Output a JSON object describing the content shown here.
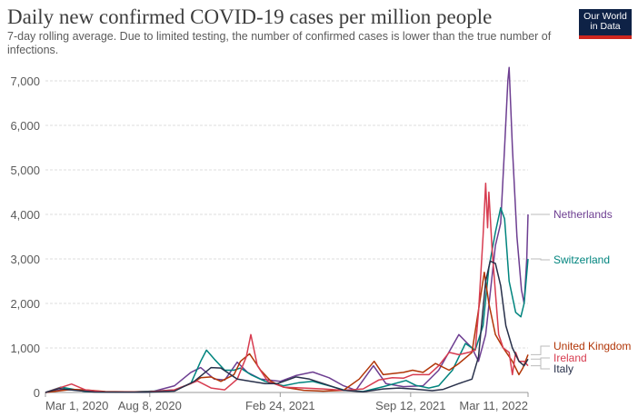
{
  "header": {
    "title": "Daily new confirmed COVID-19 cases per million people",
    "subtitle": "7-day rolling average. Due to limited testing, the number of confirmed cases is lower than the true number of infections.",
    "logo": "Our World in Data"
  },
  "chart_data": {
    "type": "line",
    "title": "Daily new confirmed COVID-19 cases per million people",
    "subtitle": "7-day rolling average. Due to limited testing, the number of confirmed cases is lower than the true number of infections.",
    "xlim": [
      "2020-03-01",
      "2022-03-11"
    ],
    "ylim": [
      0,
      7000
    ],
    "yticks": [
      0,
      1000,
      2000,
      3000,
      4000,
      5000,
      6000,
      7000
    ],
    "ytick_labels": [
      "0",
      "1,000",
      "2,000",
      "3,000",
      "4,000",
      "5,000",
      "6,000",
      "7,000"
    ],
    "xticks": [
      {
        "date": "2020-03-01",
        "label": "Mar 1, 2020"
      },
      {
        "date": "2020-08-08",
        "label": "Aug 8, 2020"
      },
      {
        "date": "2021-02-24",
        "label": "Feb 24, 2021"
      },
      {
        "date": "2021-09-12",
        "label": "Sep 12, 2021"
      },
      {
        "date": "2022-03-11",
        "label": "Mar 11, 2022"
      }
    ],
    "grid": "horizontal-dashed",
    "legend": "right, line-end labels",
    "series": [
      {
        "name": "Netherlands",
        "color": "#6d3e91",
        "points": [
          [
            "2020-03-01",
            0
          ],
          [
            "2020-03-25",
            60
          ],
          [
            "2020-04-15",
            60
          ],
          [
            "2020-05-15",
            20
          ],
          [
            "2020-07-01",
            5
          ],
          [
            "2020-08-15",
            30
          ],
          [
            "2020-09-15",
            150
          ],
          [
            "2020-10-10",
            450
          ],
          [
            "2020-10-25",
            560
          ],
          [
            "2020-11-15",
            300
          ],
          [
            "2020-12-01",
            280
          ],
          [
            "2020-12-20",
            680
          ],
          [
            "2021-01-05",
            450
          ],
          [
            "2021-01-25",
            300
          ],
          [
            "2021-02-24",
            250
          ],
          [
            "2021-03-20",
            380
          ],
          [
            "2021-04-15",
            460
          ],
          [
            "2021-05-10",
            330
          ],
          [
            "2021-06-01",
            150
          ],
          [
            "2021-06-20",
            50
          ],
          [
            "2021-07-17",
            600
          ],
          [
            "2021-08-05",
            200
          ],
          [
            "2021-09-01",
            130
          ],
          [
            "2021-10-01",
            150
          ],
          [
            "2021-10-25",
            500
          ],
          [
            "2021-11-25",
            1300
          ],
          [
            "2021-12-15",
            1000
          ],
          [
            "2021-12-25",
            700
          ],
          [
            "2022-01-05",
            1300
          ],
          [
            "2022-01-20",
            3300
          ],
          [
            "2022-01-28",
            3800
          ],
          [
            "2022-02-03",
            5500
          ],
          [
            "2022-02-08",
            7000
          ],
          [
            "2022-02-10",
            7300
          ],
          [
            "2022-02-15",
            5500
          ],
          [
            "2022-02-22",
            3500
          ],
          [
            "2022-03-01",
            2300
          ],
          [
            "2022-03-05",
            2000
          ],
          [
            "2022-03-09",
            3000
          ],
          [
            "2022-03-11",
            4000
          ]
        ]
      },
      {
        "name": "Switzerland",
        "color": "#00847e",
        "points": [
          [
            "2020-03-01",
            0
          ],
          [
            "2020-03-25",
            120
          ],
          [
            "2020-04-10",
            80
          ],
          [
            "2020-05-01",
            20
          ],
          [
            "2020-06-15",
            5
          ],
          [
            "2020-07-15",
            15
          ],
          [
            "2020-08-15",
            30
          ],
          [
            "2020-09-15",
            60
          ],
          [
            "2020-10-10",
            200
          ],
          [
            "2020-10-25",
            700
          ],
          [
            "2020-11-03",
            950
          ],
          [
            "2020-11-15",
            750
          ],
          [
            "2020-12-01",
            500
          ],
          [
            "2020-12-15",
            500
          ],
          [
            "2020-12-25",
            550
          ],
          [
            "2021-01-10",
            400
          ],
          [
            "2021-02-01",
            250
          ],
          [
            "2021-03-01",
            150
          ],
          [
            "2021-03-25",
            220
          ],
          [
            "2021-04-15",
            250
          ],
          [
            "2021-05-10",
            150
          ],
          [
            "2021-06-01",
            60
          ],
          [
            "2021-07-01",
            20
          ],
          [
            "2021-08-01",
            130
          ],
          [
            "2021-09-05",
            270
          ],
          [
            "2021-09-20",
            160
          ],
          [
            "2021-10-10",
            100
          ],
          [
            "2021-10-25",
            150
          ],
          [
            "2021-11-15",
            500
          ],
          [
            "2021-12-05",
            1100
          ],
          [
            "2021-12-20",
            950
          ],
          [
            "2022-01-01",
            1500
          ],
          [
            "2022-01-10",
            2800
          ],
          [
            "2022-01-20",
            3600
          ],
          [
            "2022-01-28",
            4150
          ],
          [
            "2022-02-03",
            3900
          ],
          [
            "2022-02-10",
            2500
          ],
          [
            "2022-02-20",
            1800
          ],
          [
            "2022-02-28",
            1700
          ],
          [
            "2022-03-05",
            2000
          ],
          [
            "2022-03-11",
            3000
          ]
        ]
      },
      {
        "name": "United Kingdom",
        "color": "#b13507",
        "points": [
          [
            "2020-03-01",
            0
          ],
          [
            "2020-04-10",
            70
          ],
          [
            "2020-05-01",
            60
          ],
          [
            "2020-06-01",
            20
          ],
          [
            "2020-08-01",
            10
          ],
          [
            "2020-09-15",
            50
          ],
          [
            "2020-10-10",
            200
          ],
          [
            "2020-10-25",
            330
          ],
          [
            "2020-11-10",
            350
          ],
          [
            "2020-11-25",
            250
          ],
          [
            "2020-12-15",
            400
          ],
          [
            "2020-12-25",
            700
          ],
          [
            "2021-01-08",
            870
          ],
          [
            "2021-01-25",
            500
          ],
          [
            "2021-02-10",
            250
          ],
          [
            "2021-03-01",
            120
          ],
          [
            "2021-04-01",
            50
          ],
          [
            "2021-05-01",
            30
          ],
          [
            "2021-06-01",
            50
          ],
          [
            "2021-06-25",
            300
          ],
          [
            "2021-07-18",
            700
          ],
          [
            "2021-08-01",
            400
          ],
          [
            "2021-09-01",
            450
          ],
          [
            "2021-09-15",
            500
          ],
          [
            "2021-10-01",
            450
          ],
          [
            "2021-10-20",
            650
          ],
          [
            "2021-11-10",
            500
          ],
          [
            "2021-11-25",
            650
          ],
          [
            "2021-12-15",
            900
          ],
          [
            "2022-01-03",
            2700
          ],
          [
            "2022-01-10",
            2000
          ],
          [
            "2022-01-20",
            1300
          ],
          [
            "2022-02-01",
            1000
          ],
          [
            "2022-02-15",
            700
          ],
          [
            "2022-02-25",
            400
          ],
          [
            "2022-03-03",
            550
          ],
          [
            "2022-03-11",
            850
          ]
        ]
      },
      {
        "name": "Ireland",
        "color": "#d73c50",
        "points": [
          [
            "2020-03-01",
            0
          ],
          [
            "2020-04-10",
            190
          ],
          [
            "2020-05-01",
            60
          ],
          [
            "2020-06-01",
            10
          ],
          [
            "2020-08-01",
            10
          ],
          [
            "2020-09-15",
            60
          ],
          [
            "2020-10-20",
            260
          ],
          [
            "2020-11-10",
            100
          ],
          [
            "2020-12-01",
            60
          ],
          [
            "2020-12-20",
            300
          ],
          [
            "2021-01-03",
            800
          ],
          [
            "2021-01-10",
            1300
          ],
          [
            "2021-01-20",
            600
          ],
          [
            "2021-02-05",
            250
          ],
          [
            "2021-03-01",
            120
          ],
          [
            "2021-04-01",
            100
          ],
          [
            "2021-05-01",
            80
          ],
          [
            "2021-06-01",
            50
          ],
          [
            "2021-07-01",
            80
          ],
          [
            "2021-07-25",
            280
          ],
          [
            "2021-08-15",
            330
          ],
          [
            "2021-09-01",
            320
          ],
          [
            "2021-09-15",
            400
          ],
          [
            "2021-10-10",
            400
          ],
          [
            "2021-10-25",
            600
          ],
          [
            "2021-11-10",
            900
          ],
          [
            "2021-11-25",
            850
          ],
          [
            "2021-12-10",
            900
          ],
          [
            "2021-12-20",
            950
          ],
          [
            "2021-12-25",
            1800
          ],
          [
            "2022-01-01",
            3500
          ],
          [
            "2022-01-05",
            4700
          ],
          [
            "2022-01-08",
            3700
          ],
          [
            "2022-01-10",
            4500
          ],
          [
            "2022-01-15",
            3200
          ],
          [
            "2022-01-25",
            1300
          ],
          [
            "2022-02-01",
            1000
          ],
          [
            "2022-02-10",
            900
          ],
          [
            "2022-02-15",
            400
          ],
          [
            "2022-02-20",
            900
          ],
          [
            "2022-02-25",
            700
          ],
          [
            "2022-03-05",
            700
          ],
          [
            "2022-03-11",
            600
          ]
        ]
      },
      {
        "name": "Italy",
        "color": "#28304a",
        "points": [
          [
            "2020-03-01",
            0
          ],
          [
            "2020-03-22",
            90
          ],
          [
            "2020-04-15",
            50
          ],
          [
            "2020-05-15",
            10
          ],
          [
            "2020-08-01",
            5
          ],
          [
            "2020-09-15",
            30
          ],
          [
            "2020-10-15",
            250
          ],
          [
            "2020-11-10",
            560
          ],
          [
            "2020-11-25",
            550
          ],
          [
            "2020-12-20",
            300
          ],
          [
            "2021-01-10",
            250
          ],
          [
            "2021-02-01",
            200
          ],
          [
            "2021-02-20",
            200
          ],
          [
            "2021-03-20",
            350
          ],
          [
            "2021-04-10",
            300
          ],
          [
            "2021-05-01",
            200
          ],
          [
            "2021-06-01",
            50
          ],
          [
            "2021-07-01",
            15
          ],
          [
            "2021-08-01",
            80
          ],
          [
            "2021-08-25",
            100
          ],
          [
            "2021-09-15",
            80
          ],
          [
            "2021-10-15",
            40
          ],
          [
            "2021-11-01",
            70
          ],
          [
            "2021-11-25",
            200
          ],
          [
            "2021-12-15",
            300
          ],
          [
            "2021-12-25",
            800
          ],
          [
            "2022-01-05",
            2500
          ],
          [
            "2022-01-12",
            2950
          ],
          [
            "2022-01-20",
            2900
          ],
          [
            "2022-01-28",
            2400
          ],
          [
            "2022-02-05",
            1500
          ],
          [
            "2022-02-15",
            1000
          ],
          [
            "2022-02-25",
            700
          ],
          [
            "2022-03-05",
            600
          ],
          [
            "2022-03-11",
            750
          ]
        ]
      }
    ]
  }
}
